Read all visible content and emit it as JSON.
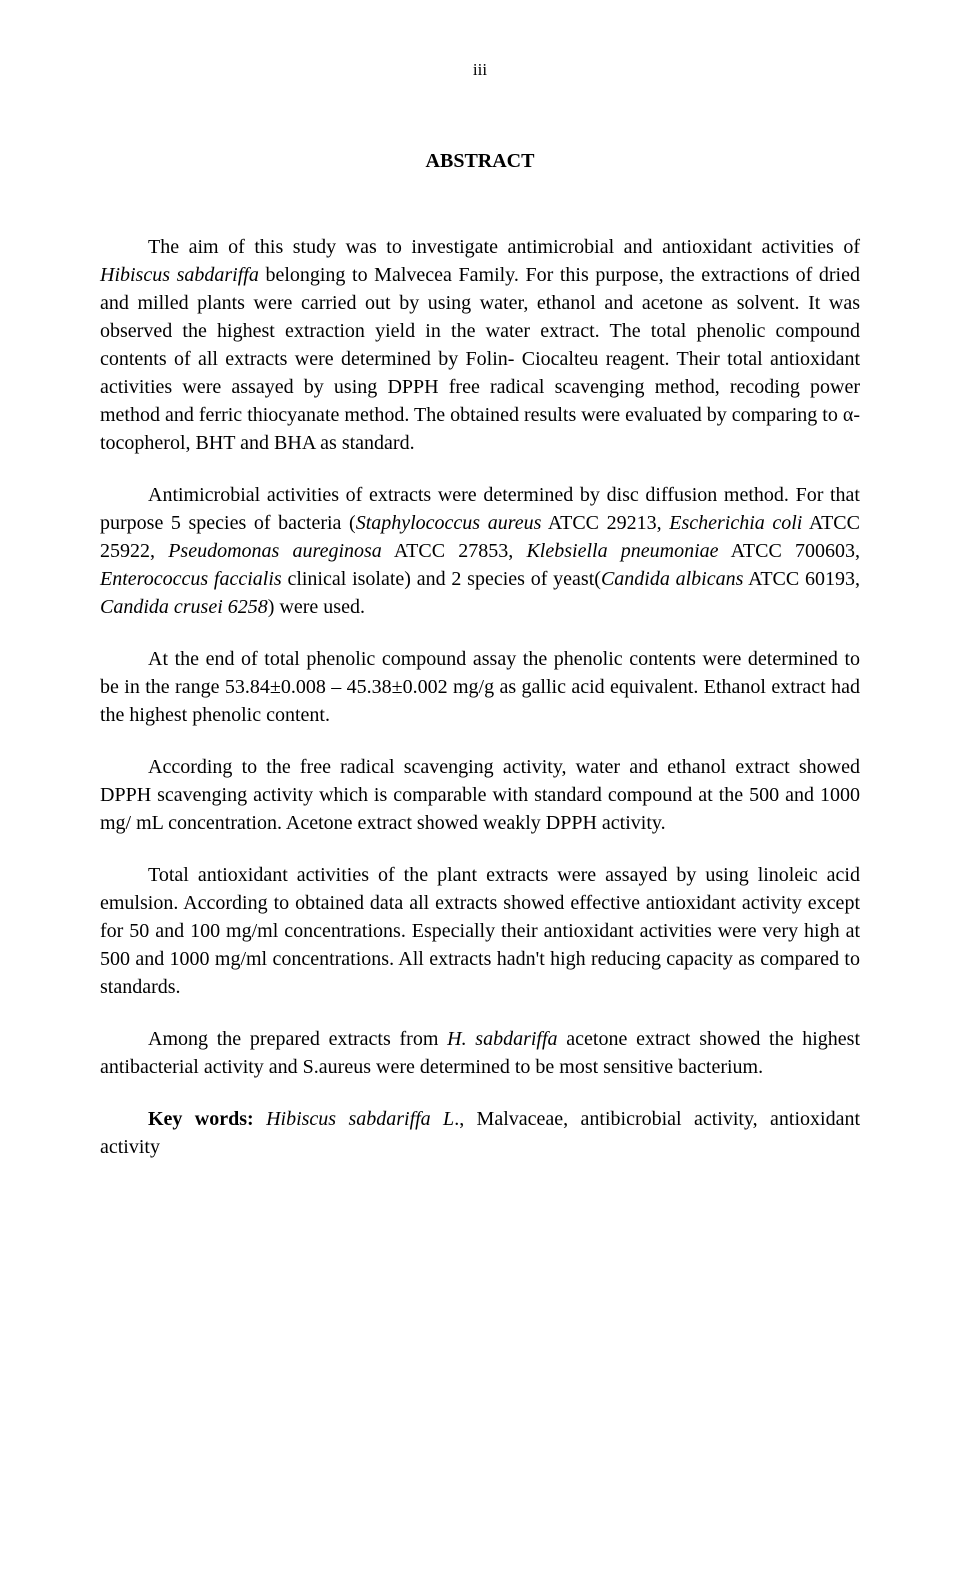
{
  "page": {
    "number": "iii",
    "heading": "ABSTRACT",
    "p1_a": "The aim of this study was to investigate antimicrobial and antioxidant activities of ",
    "p1_i1": "Hibiscus sabdariffa",
    "p1_b": " belonging to Malvecea Family. For this purpose, the extractions of dried and milled plants were carried out by using water, ethanol and acetone as solvent. It was observed the highest extraction yield in the water extract. The total phenolic compound contents of all extracts were determined by Folin- Ciocalteu reagent. Their total antioxidant activities were assayed by using DPPH free radical scavenging method, recoding power method and ferric thiocyanate method. The obtained results were evaluated by comparing to α- tocopherol, BHT and BHA as standard.",
    "p2_a": "Antimicrobial activities of extracts were determined by disc diffusion method. For that purpose 5 species of bacteria (",
    "p2_i1": "Staphylococcus aureus",
    "p2_b": " ATCC 29213, ",
    "p2_i2": "Escherichia coli",
    "p2_c": " ATCC 25922, ",
    "p2_i3": "Pseudomonas aureginosa",
    "p2_d": " ATCC 27853, ",
    "p2_i4": "Klebsiella pneumoniae",
    "p2_e": " ATCC 700603, ",
    "p2_i5": "Enterococcus faccialis",
    "p2_f": " clinical isolate) and 2 species of yeast(",
    "p2_i6": "Candida albicans",
    "p2_g": " ATCC 60193, ",
    "p2_i7": "Candida crusei 6258",
    "p2_h": ")  were used.",
    "p3": "At the end of total phenolic compound assay the phenolic contents were determined to be in the range 53.84±0.008 – 45.38±0.002 mg/g as gallic acid equivalent. Ethanol extract had the highest phenolic content.",
    "p4": "According to the free radical scavenging activity, water and ethanol extract showed DPPH scavenging activity which is comparable with standard compound at the 500 and 1000 mg/ mL concentration. Acetone extract showed weakly DPPH activity.",
    "p5": "Total antioxidant activities of the plant extracts were assayed by using linoleic acid emulsion. According to obtained data all extracts showed effective antioxidant activity except for 50 and 100 mg/ml concentrations. Especially their antioxidant activities were very high at 500 and 1000 mg/ml concentrations. All extracts hadn't high reducing capacity as compared to standards.",
    "p6_a": "Among the prepared extracts from ",
    "p6_i1": "H. sabdariffa",
    "p6_b": " acetone extract showed the highest antibacterial activity and S.aureus were determined to be most sensitive bacterium.",
    "kw_label": "Key words:",
    "kw_a": " ",
    "kw_i1": "Hibiscus sabdariffa L",
    "kw_b": "., Malvaceae, antibicrobial activity, antioxidant activity"
  }
}
